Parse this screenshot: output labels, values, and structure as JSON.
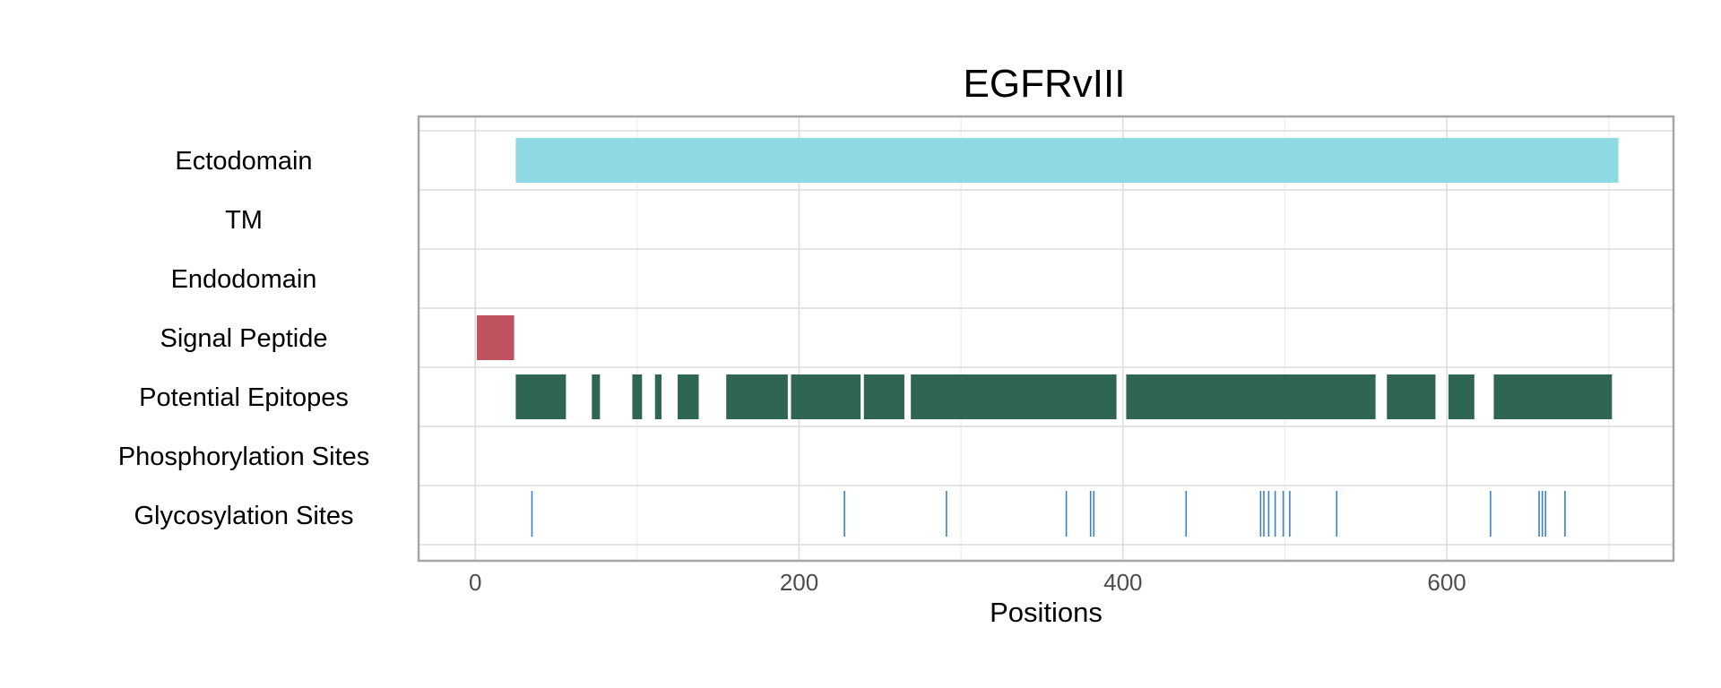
{
  "chart_data": {
    "type": "bar",
    "title": "EGFRvIII",
    "xlabel": "Positions",
    "ylabel": "",
    "xlim": [
      -35,
      740
    ],
    "xticks": [
      0,
      200,
      400,
      600
    ],
    "xtick_labels": [
      "0",
      "200",
      "400",
      "600"
    ],
    "grid": true,
    "legend": "none",
    "categories": [
      "Ectodomain",
      "TM",
      "Endodomain",
      "Signal Peptide",
      "Potential Epitopes",
      "Phosphorylation Sites",
      "Glycosylation Sites"
    ],
    "series": [
      {
        "category": "Ectodomain",
        "color": "#8fd9e4",
        "intervals": [
          [
            25,
            706
          ]
        ]
      },
      {
        "category": "TM",
        "color": "#8fd9e4",
        "intervals": []
      },
      {
        "category": "Endodomain",
        "color": "#8fd9e4",
        "intervals": []
      },
      {
        "category": "Signal Peptide",
        "color": "#c05260",
        "intervals": [
          [
            1,
            24
          ]
        ]
      },
      {
        "category": "Potential Epitopes",
        "color": "#2e6651",
        "intervals": [
          [
            25,
            56
          ],
          [
            72,
            77
          ],
          [
            97,
            103
          ],
          [
            111,
            115
          ],
          [
            125,
            138
          ],
          [
            155,
            193
          ],
          [
            195,
            238
          ],
          [
            240,
            265
          ],
          [
            269,
            396
          ],
          [
            402,
            556
          ],
          [
            563,
            593
          ],
          [
            601,
            617
          ],
          [
            629,
            702
          ]
        ]
      },
      {
        "category": "Phosphorylation Sites",
        "color": "#3a82c4",
        "intervals": []
      },
      {
        "category": "Glycosylation Sites",
        "color": "#3a82c4",
        "sites": [
          35,
          228,
          291,
          365,
          380,
          382,
          439,
          485,
          487,
          490,
          494,
          499,
          503,
          532,
          627,
          657,
          659,
          661,
          673
        ]
      }
    ]
  }
}
